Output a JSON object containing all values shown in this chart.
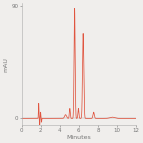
{
  "title": "",
  "xlabel": "Minutes",
  "ylabel": "mAU",
  "xlim": [
    0,
    12
  ],
  "ylim": [
    -5,
    92
  ],
  "yticks": [
    0,
    90
  ],
  "xticks": [
    0,
    2,
    4,
    6,
    8,
    10,
    12
  ],
  "line_color": "#e05540",
  "bg_color": "#f0eeec",
  "figsize": [
    1.43,
    1.43
  ],
  "dpi": 100,
  "peaks": [
    {
      "mu": 1.78,
      "sigma": 0.025,
      "amp": 12
    },
    {
      "mu": 1.88,
      "sigma": 0.02,
      "amp": -7
    },
    {
      "mu": 1.98,
      "sigma": 0.025,
      "amp": 5
    },
    {
      "mu": 2.08,
      "sigma": 0.02,
      "amp": -3
    },
    {
      "mu": 4.6,
      "sigma": 0.1,
      "amp": 3
    },
    {
      "mu": 5.05,
      "sigma": 0.05,
      "amp": 8
    },
    {
      "mu": 5.55,
      "sigma": 0.055,
      "amp": 88
    },
    {
      "mu": 5.95,
      "sigma": 0.05,
      "amp": 8
    },
    {
      "mu": 6.45,
      "sigma": 0.065,
      "amp": 68
    },
    {
      "mu": 7.55,
      "sigma": 0.07,
      "amp": 5
    },
    {
      "mu": 9.5,
      "sigma": 0.25,
      "amp": 1.0
    }
  ]
}
